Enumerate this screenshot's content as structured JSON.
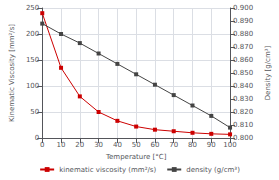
{
  "chart_data": {
    "type": "line",
    "xlabel": "Temperature [°C]",
    "ylabel": "Kinematic Viscosity [mm²/s]",
    "y2label": "Density [g/cm³]",
    "x": [
      0,
      10,
      20,
      30,
      40,
      50,
      60,
      70,
      80,
      90,
      100
    ],
    "series": [
      {
        "name": "kinematic viscosity (mm²/s)",
        "color": "#cc0000",
        "marker": "square",
        "values": [
          240,
          135,
          80,
          50,
          33,
          22,
          16,
          13,
          10,
          8,
          7
        ]
      },
      {
        "name": "density (g/cm³)",
        "color": "#444444",
        "marker": "square",
        "axis": "y2",
        "values": [
          0.888,
          0.88,
          0.873,
          0.865,
          0.857,
          0.849,
          0.841,
          0.833,
          0.825,
          0.817,
          0.808
        ]
      }
    ],
    "xlim": [
      0,
      100
    ],
    "xticks": [
      0,
      10,
      20,
      30,
      40,
      50,
      60,
      70,
      80,
      90,
      100
    ],
    "ylim": [
      0,
      250
    ],
    "yticks": [
      0,
      50,
      100,
      150,
      200,
      250
    ],
    "y2lim": [
      0.8,
      0.9
    ],
    "y2ticks": [
      {
        "value": 0.8,
        "label": "0.800"
      },
      {
        "value": 0.81,
        "label": "0.810"
      },
      {
        "value": 0.82,
        "label": "0.820"
      },
      {
        "value": 0.83,
        "label": "0.830"
      },
      {
        "value": 0.84,
        "label": "0.840"
      },
      {
        "value": 0.85,
        "label": "0.850"
      },
      {
        "value": 0.86,
        "label": "0.860"
      },
      {
        "value": 0.87,
        "label": "0.870"
      },
      {
        "value": 0.88,
        "label": "0.880"
      },
      {
        "value": 0.89,
        "label": "0.890"
      },
      {
        "value": 0.9,
        "label": "0.900"
      }
    ],
    "grid": true,
    "legend": "bottom"
  }
}
